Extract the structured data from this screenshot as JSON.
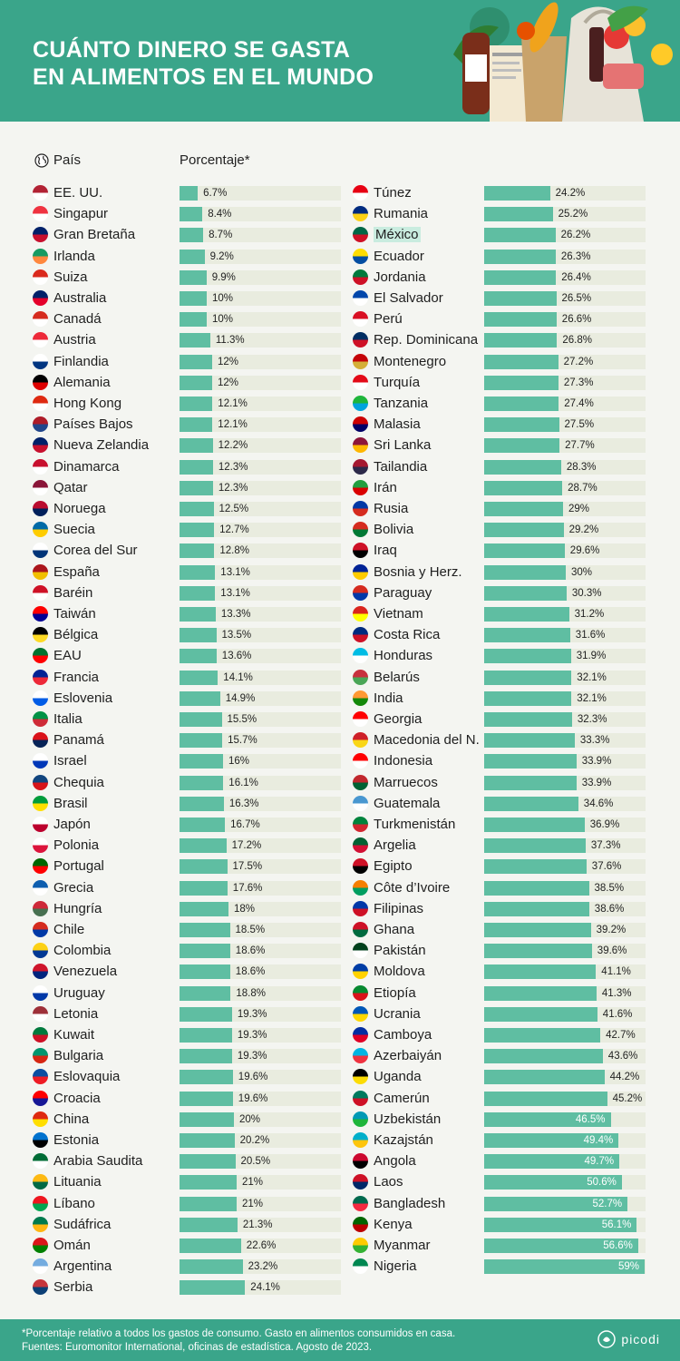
{
  "header": {
    "title_line1": "CUÁNTO DINERO SE GASTA",
    "title_line2": "EN ALIMENTOS EN EL MUNDO"
  },
  "columns": {
    "country_header": "País",
    "percent_header": "Porcentaje*"
  },
  "footer": {
    "note": "*Porcentaje relativo a todos los gastos de consumo. Gasto en alimentos consumidos en casa.",
    "sources": "Fuentes: Euromonitor International, oficinas de estadística. Agosto de 2023.",
    "brand": "picodi"
  },
  "colors": {
    "brand_green": "#3aa58a",
    "bar": "#5fbea2",
    "track": "#e9ecdf",
    "highlight": "#c9ecdf"
  },
  "highlighted_country": "México",
  "chart_data": {
    "type": "bar",
    "orientation": "horizontal",
    "title": "CUÁNTO DINERO SE GASTA EN ALIMENTOS EN EL MUNDO",
    "xlabel": "Porcentaje*",
    "ylabel": "País",
    "xlim": [
      0,
      60
    ],
    "unit": "%",
    "columns": [
      {
        "categories": [
          "EE. UU.",
          "Singapur",
          "Gran Bretaña",
          "Irlanda",
          "Suiza",
          "Australia",
          "Canadá",
          "Austria",
          "Finlandia",
          "Alemania",
          "Hong Kong",
          "Países Bajos",
          "Nueva Zelandia",
          "Dinamarca",
          "Qatar",
          "Noruega",
          "Suecia",
          "Corea del Sur",
          "España",
          "Baréin",
          "Taiwán",
          "Bélgica",
          "EAU",
          "Francia",
          "Eslovenia",
          "Italia",
          "Panamá",
          "Israel",
          "Chequia",
          "Brasil",
          "Japón",
          "Polonia",
          "Portugal",
          "Grecia",
          "Hungría",
          "Chile",
          "Colombia",
          "Venezuela",
          "Uruguay",
          "Letonia",
          "Kuwait",
          "Bulgaria",
          "Eslovaquia",
          "Croacia",
          "China",
          "Estonia",
          "Arabia Saudita",
          "Lituania",
          "Líbano",
          "Sudáfrica",
          "Omán",
          "Argentina",
          "Serbia"
        ],
        "values": [
          6.7,
          8.4,
          8.7,
          9.2,
          9.9,
          10,
          10,
          11.3,
          12,
          12,
          12.1,
          12.1,
          12.2,
          12.3,
          12.3,
          12.5,
          12.7,
          12.8,
          13.1,
          13.1,
          13.3,
          13.5,
          13.6,
          14.1,
          14.9,
          15.5,
          15.7,
          16,
          16.1,
          16.3,
          16.7,
          17.2,
          17.5,
          17.6,
          18,
          18.5,
          18.6,
          18.6,
          18.8,
          19.3,
          19.3,
          19.3,
          19.6,
          19.6,
          20,
          20.2,
          20.5,
          21,
          21,
          21.3,
          22.6,
          23.2,
          24.1
        ],
        "labels": [
          "6.7%",
          "8.4%",
          "8.7%",
          "9.2%",
          "9.9%",
          "10%",
          "10%",
          "11.3%",
          "12%",
          "12%",
          "12.1%",
          "12.1%",
          "12.2%",
          "12.3%",
          "12.3%",
          "12.5%",
          "12.7%",
          "12.8%",
          "13.1%",
          "13.1%",
          "13.3%",
          "13.5%",
          "13.6%",
          "14.1%",
          "14.9%",
          "15.5%",
          "15.7%",
          "16%",
          "16.1%",
          "16.3%",
          "16.7%",
          "17.2%",
          "17.5%",
          "17.6%",
          "18%",
          "18.5%",
          "18.6%",
          "18.6%",
          "18.8%",
          "19.3%",
          "19.3%",
          "19.3%",
          "19.6%",
          "19.6%",
          "20%",
          "20.2%",
          "20.5%",
          "21%",
          "21%",
          "21.3%",
          "22.6%",
          "23.2%",
          "24.1%"
        ]
      },
      {
        "categories": [
          "Túnez",
          "Rumania",
          "México",
          "Ecuador",
          "Jordania",
          "El Salvador",
          "Perú",
          "Rep. Dominicana",
          "Montenegro",
          "Turquía",
          "Tanzania",
          "Malasia",
          "Sri Lanka",
          "Tailandia",
          "Irán",
          "Rusia",
          "Bolivia",
          "Iraq",
          "Bosnia y Herz.",
          "Paraguay",
          "Vietnam",
          "Costa Rica",
          "Honduras",
          "Belarús",
          "India",
          "Georgia",
          "Macedonia del N.",
          "Indonesia",
          "Marruecos",
          "Guatemala",
          "Turkmenistán",
          "Argelia",
          "Egipto",
          "Côte d’Ivoire",
          "Filipinas",
          "Ghana",
          "Pakistán",
          "Moldova",
          "Etiopía",
          "Ucrania",
          "Camboya",
          "Azerbaiyán",
          "Uganda",
          "Camerún",
          "Uzbekistán",
          "Kazajstán",
          "Angola",
          "Laos",
          "Bangladesh",
          "Kenya",
          "Myanmar",
          "Nigeria"
        ],
        "values": [
          24.2,
          25.2,
          26.2,
          26.3,
          26.4,
          26.5,
          26.6,
          26.8,
          27.2,
          27.3,
          27.4,
          27.5,
          27.7,
          28.3,
          28.7,
          29,
          29.2,
          29.6,
          30,
          30.3,
          31.2,
          31.6,
          31.9,
          32.1,
          32.1,
          32.3,
          33.3,
          33.9,
          33.9,
          34.6,
          36.9,
          37.3,
          37.6,
          38.5,
          38.6,
          39.2,
          39.6,
          41.1,
          41.3,
          41.6,
          42.7,
          43.6,
          44.2,
          45.2,
          46.5,
          49.4,
          49.7,
          50.6,
          52.7,
          56.1,
          56.6,
          59
        ],
        "labels": [
          "24.2%",
          "25.2%",
          "26.2%",
          "26.3%",
          "26.4%",
          "26.5%",
          "26.6%",
          "26.8%",
          "27.2%",
          "27.3%",
          "27.4%",
          "27.5%",
          "27.7%",
          "28.3%",
          "28.7%",
          "29%",
          "29.2%",
          "29.6%",
          "30%",
          "30.3%",
          "31.2%",
          "31.6%",
          "31.9%",
          "32.1%",
          "32.1%",
          "32.3%",
          "33.3%",
          "33.9%",
          "33.9%",
          "34.6%",
          "36.9%",
          "37.3%",
          "37.6%",
          "38.5%",
          "38.6%",
          "39.2%",
          "39.6%",
          "41.1%",
          "41.3%",
          "41.6%",
          "42.7%",
          "43.6%",
          "44.2%",
          "45.2%",
          "46.5%",
          "49.4%",
          "49.7%",
          "50.6%",
          "52.7%",
          "56.1%",
          "56.6%",
          "59%"
        ]
      }
    ],
    "flag_colors": [
      [
        [
          "#b22234",
          "#ffffff"
        ],
        [
          "#ef3340",
          "#ffffff"
        ],
        [
          "#012169",
          "#c8102e"
        ],
        [
          "#169b62",
          "#ff883e"
        ],
        [
          "#da291c",
          "#ffffff"
        ],
        [
          "#012169",
          "#e4002b"
        ],
        [
          "#d52b1e",
          "#ffffff"
        ],
        [
          "#ed2939",
          "#ffffff"
        ],
        [
          "#ffffff",
          "#003580"
        ],
        [
          "#000000",
          "#dd0000"
        ],
        [
          "#de2910",
          "#ffffff"
        ],
        [
          "#ae1c28",
          "#21468b"
        ],
        [
          "#012169",
          "#c8102e"
        ],
        [
          "#c8102e",
          "#ffffff"
        ],
        [
          "#8a1538",
          "#ffffff"
        ],
        [
          "#ba0c2f",
          "#00205b"
        ],
        [
          "#006aa7",
          "#fecc00"
        ],
        [
          "#ffffff",
          "#003478"
        ],
        [
          "#aa151b",
          "#f1bf00"
        ],
        [
          "#ce1126",
          "#ffffff"
        ],
        [
          "#fe0000",
          "#000095"
        ],
        [
          "#000000",
          "#fdda24"
        ],
        [
          "#00732f",
          "#ff0000"
        ],
        [
          "#002395",
          "#ed2939"
        ],
        [
          "#ffffff",
          "#005ce6"
        ],
        [
          "#009246",
          "#ce2b37"
        ],
        [
          "#da121a",
          "#072357"
        ],
        [
          "#ffffff",
          "#0038b8"
        ],
        [
          "#11457e",
          "#d7141a"
        ],
        [
          "#009c3b",
          "#ffdf00"
        ],
        [
          "#ffffff",
          "#bc002d"
        ],
        [
          "#ffffff",
          "#dc143c"
        ],
        [
          "#006600",
          "#ff0000"
        ],
        [
          "#0d5eaf",
          "#ffffff"
        ],
        [
          "#ce2939",
          "#477050"
        ],
        [
          "#d52b1e",
          "#0039a6"
        ],
        [
          "#fcd116",
          "#003893"
        ],
        [
          "#cf142b",
          "#00247d"
        ],
        [
          "#ffffff",
          "#0038a8"
        ],
        [
          "#9e3039",
          "#ffffff"
        ],
        [
          "#007a3d",
          "#ce1126"
        ],
        [
          "#00966e",
          "#d62612"
        ],
        [
          "#0b4ea2",
          "#ee1c25"
        ],
        [
          "#ff0000",
          "#171796"
        ],
        [
          "#de2910",
          "#ffde00"
        ],
        [
          "#0072ce",
          "#000000"
        ],
        [
          "#006c35",
          "#ffffff"
        ],
        [
          "#fdb913",
          "#006a44"
        ],
        [
          "#ee161f",
          "#00a651"
        ],
        [
          "#007a4d",
          "#ffb612"
        ],
        [
          "#db161b",
          "#008000"
        ],
        [
          "#74acdf",
          "#ffffff"
        ],
        [
          "#c6363c",
          "#0c4076"
        ]
      ],
      [
        [
          "#e70013",
          "#ffffff"
        ],
        [
          "#002b7f",
          "#fcd116"
        ],
        [
          "#006847",
          "#ce1126"
        ],
        [
          "#ffdd00",
          "#034ea2"
        ],
        [
          "#007a3d",
          "#ce1126"
        ],
        [
          "#0047ab",
          "#ffffff"
        ],
        [
          "#d91023",
          "#ffffff"
        ],
        [
          "#002d62",
          "#ce1126"
        ],
        [
          "#c40308",
          "#d4af37"
        ],
        [
          "#e30a17",
          "#ffffff"
        ],
        [
          "#1eb53a",
          "#00a3dd"
        ],
        [
          "#cc0001",
          "#010066"
        ],
        [
          "#8d153a",
          "#ffb700"
        ],
        [
          "#a51931",
          "#2d2a4a"
        ],
        [
          "#239f40",
          "#da0000"
        ],
        [
          "#0039a6",
          "#d52b1e"
        ],
        [
          "#d52b1e",
          "#007934"
        ],
        [
          "#ce1126",
          "#000000"
        ],
        [
          "#002395",
          "#fecb00"
        ],
        [
          "#d52b1e",
          "#0038a8"
        ],
        [
          "#da251d",
          "#ffff00"
        ],
        [
          "#002b7f",
          "#ce1126"
        ],
        [
          "#00bce4",
          "#ffffff"
        ],
        [
          "#c8313e",
          "#4aa657"
        ],
        [
          "#ff9933",
          "#138808"
        ],
        [
          "#ff0000",
          "#ffffff"
        ],
        [
          "#ce2028",
          "#f9d616"
        ],
        [
          "#ff0000",
          "#ffffff"
        ],
        [
          "#c1272d",
          "#006233"
        ],
        [
          "#4997d0",
          "#ffffff"
        ],
        [
          "#00843d",
          "#d22630"
        ],
        [
          "#006233",
          "#d21034"
        ],
        [
          "#ce1126",
          "#000000"
        ],
        [
          "#f77f00",
          "#009e60"
        ],
        [
          "#0038a8",
          "#ce1126"
        ],
        [
          "#ce1126",
          "#006b3f"
        ],
        [
          "#01411c",
          "#ffffff"
        ],
        [
          "#003da5",
          "#ffd200"
        ],
        [
          "#078930",
          "#da121a"
        ],
        [
          "#0057b7",
          "#ffd700"
        ],
        [
          "#032ea1",
          "#e00025"
        ],
        [
          "#00b5e2",
          "#ef3340"
        ],
        [
          "#000000",
          "#fcdc04"
        ],
        [
          "#007a5e",
          "#ce1126"
        ],
        [
          "#0099b5",
          "#1eb53a"
        ],
        [
          "#00afca",
          "#fec50c"
        ],
        [
          "#cc092f",
          "#000000"
        ],
        [
          "#ce1126",
          "#002868"
        ],
        [
          "#006a4e",
          "#f42a41"
        ],
        [
          "#006600",
          "#bb0000"
        ],
        [
          "#fecb00",
          "#34b233"
        ],
        [
          "#008751",
          "#ffffff"
        ]
      ]
    ]
  }
}
